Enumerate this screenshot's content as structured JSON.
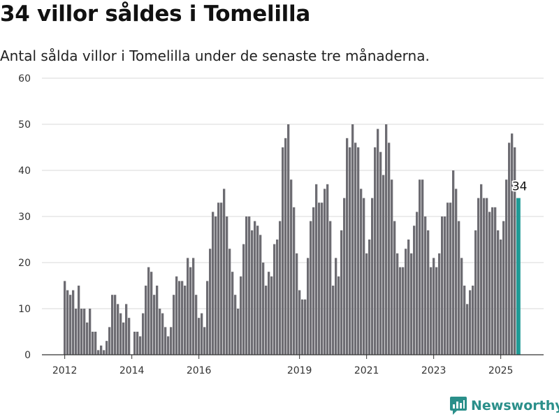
{
  "title": "34 villor såldes i Tomelilla",
  "subtitle": "Antal sålda villor i Tomelilla under de senaste tre månaderna.",
  "brand": {
    "name": "Newsworthy",
    "icon": "newsworthy-logo-icon",
    "color": "#2a8f8a"
  },
  "chart_data": {
    "type": "bar",
    "ylim": [
      0,
      60
    ],
    "yticks": [
      0,
      10,
      20,
      30,
      40,
      50,
      60
    ],
    "xticks": [
      "2012",
      "2014",
      "2016",
      "2019",
      "2021",
      "2023",
      "2025"
    ],
    "bar_color": "#6d6c72",
    "highlight_color": "#1e9b96",
    "grid": true,
    "highlight_label": "34",
    "values": [
      16,
      14,
      13,
      14,
      10,
      15,
      10,
      10,
      7,
      10,
      5,
      5,
      1,
      2,
      1,
      3,
      6,
      13,
      13,
      11,
      9,
      7,
      11,
      8,
      0,
      5,
      5,
      4,
      9,
      15,
      19,
      18,
      13,
      15,
      10,
      9,
      6,
      4,
      6,
      13,
      17,
      16,
      16,
      15,
      21,
      19,
      21,
      13,
      8,
      9,
      6,
      16,
      23,
      31,
      30,
      33,
      33,
      36,
      30,
      23,
      18,
      13,
      10,
      17,
      24,
      30,
      30,
      27,
      29,
      28,
      26,
      20,
      15,
      18,
      17,
      24,
      25,
      29,
      45,
      47,
      50,
      38,
      32,
      22,
      14,
      12,
      12,
      21,
      29,
      32,
      37,
      33,
      33,
      36,
      37,
      29,
      15,
      21,
      17,
      27,
      34,
      47,
      45,
      50,
      46,
      45,
      36,
      34,
      22,
      25,
      34,
      45,
      49,
      44,
      39,
      50,
      46,
      38,
      29,
      22,
      19,
      19,
      23,
      25,
      22,
      28,
      31,
      38,
      38,
      30,
      27,
      19,
      21,
      19,
      22,
      30,
      30,
      33,
      33,
      40,
      36,
      29,
      21,
      15,
      11,
      14,
      15,
      27,
      34,
      37,
      34,
      34,
      31,
      32,
      32,
      27,
      25,
      29,
      38,
      46,
      48,
      45,
      34
    ]
  }
}
